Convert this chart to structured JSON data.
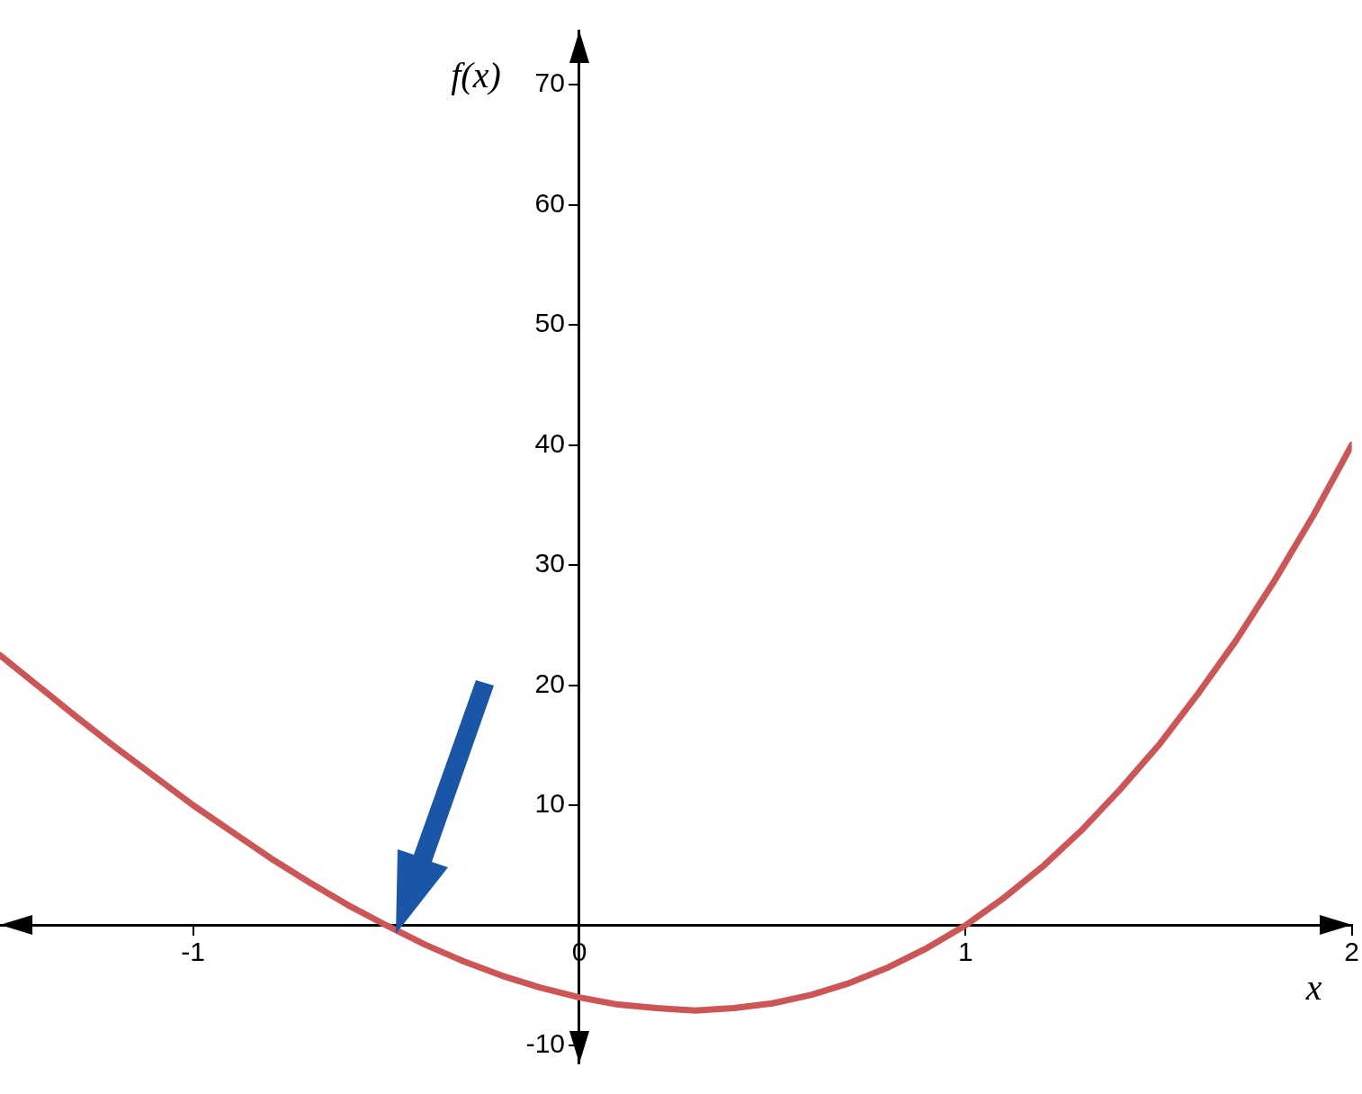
{
  "chart_data": {
    "type": "line",
    "xlabel": "x",
    "ylabel": "f(x)",
    "x": [
      -1.5,
      -1.4,
      -1.3,
      -1.2,
      -1.1,
      -1.0,
      -0.9,
      -0.8,
      -0.7,
      -0.6,
      -0.5,
      -0.4,
      -0.3,
      -0.2,
      -0.1,
      0,
      0.1,
      0.2,
      0.3,
      0.4,
      0.5,
      0.6,
      0.7,
      0.8,
      0.9,
      1.0,
      1.1,
      1.2,
      1.3,
      1.4,
      1.5,
      1.6,
      1.7,
      1.8,
      1.9,
      2.0
    ],
    "series": [
      {
        "color": "#cd5555",
        "values": [
          22.5,
          19.9,
          17.3,
          14.8,
          12.4,
          10,
          7.8,
          5.6,
          3.6,
          1.7,
          0,
          -1.6,
          -3,
          -4.2,
          -5.2,
          -6,
          -6.6,
          -6.9,
          -7.1,
          -6.9,
          -6.5,
          -5.8,
          -4.8,
          -3.5,
          -1.9,
          0,
          2.3,
          4.9,
          7.9,
          11.3,
          15,
          19.2,
          23.7,
          28.7,
          34.1,
          40
        ]
      }
    ],
    "xlim": [
      -1.5,
      2
    ],
    "ylim": [
      -11.5,
      74.5
    ],
    "xticks": [
      -1,
      0,
      1,
      2
    ],
    "yticks": [
      -10,
      10,
      20,
      30,
      40,
      50,
      60,
      70
    ],
    "grid": false,
    "legend": false,
    "marker": "none",
    "line_style": "solid"
  }
}
